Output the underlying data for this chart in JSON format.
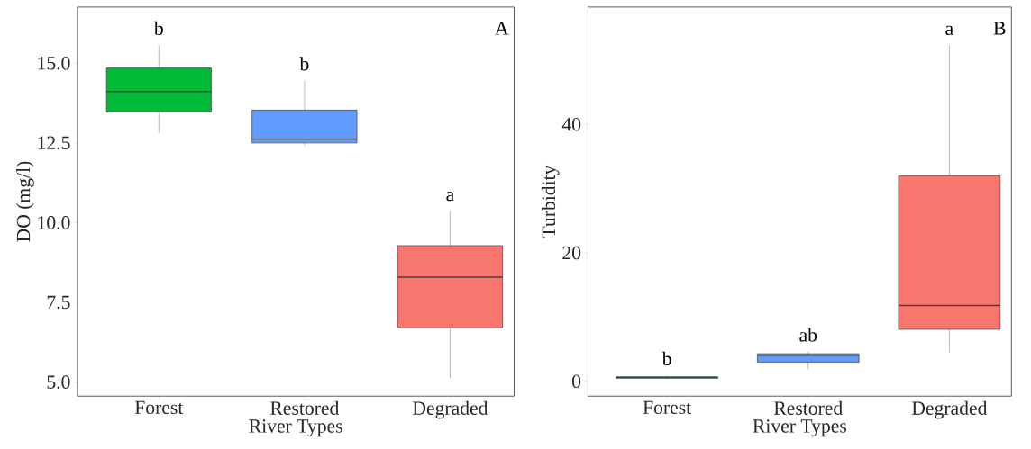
{
  "chart_data": [
    {
      "type": "box",
      "ylabel": "DO (mg/l)",
      "xlabel": "River Types",
      "categories": [
        "Forest",
        "Restored",
        "Degraded"
      ],
      "colors": [
        "#00ba38",
        "#619cff",
        "#f8766d"
      ],
      "boxes": [
        {
          "low": 12.81,
          "q1": 13.47,
          "median": 14.11,
          "q3": 14.85,
          "high": 15.56
        },
        {
          "low": 12.42,
          "q1": 12.5,
          "median": 12.62,
          "q3": 13.53,
          "high": 14.45
        },
        {
          "low": 5.13,
          "q1": 6.7,
          "median": 8.29,
          "q3": 9.28,
          "high": 10.36
        }
      ],
      "ylim": [
        4.56,
        16.76
      ],
      "yticks": [
        {
          "value": 5,
          "label": "5.0"
        },
        7.5,
        {
          "value": 10,
          "label": "10.0"
        },
        12.5,
        {
          "value": 15,
          "label": "15.0"
        }
      ],
      "grid": false,
      "annotations": [
        "b",
        "b",
        "a",
        "A"
      ]
    },
    {
      "type": "box",
      "ylabel": "Turbidity",
      "xlabel": "River Types",
      "categories": [
        "Forest",
        "Restored",
        "Degraded"
      ],
      "colors": [
        "#00ba38",
        "#619cff",
        "#f8766d"
      ],
      "boxes": [
        {
          "low": 0.5,
          "q1": 0.5,
          "median": 0.6,
          "q3": 0.7,
          "high": 0.9
        },
        {
          "low": 1.9,
          "q1": 3.0,
          "median": 4.05,
          "q3": 4.3,
          "high": 4.6
        },
        {
          "low": 4.5,
          "q1": 8.1,
          "median": 11.8,
          "q3": 32.0,
          "high": 52.3
        }
      ],
      "ylim": [
        -2.3,
        58.25
      ],
      "yticks": [
        0,
        20,
        40
      ],
      "grid": false,
      "annotations": [
        "b",
        "ab",
        "a",
        "B"
      ]
    }
  ]
}
